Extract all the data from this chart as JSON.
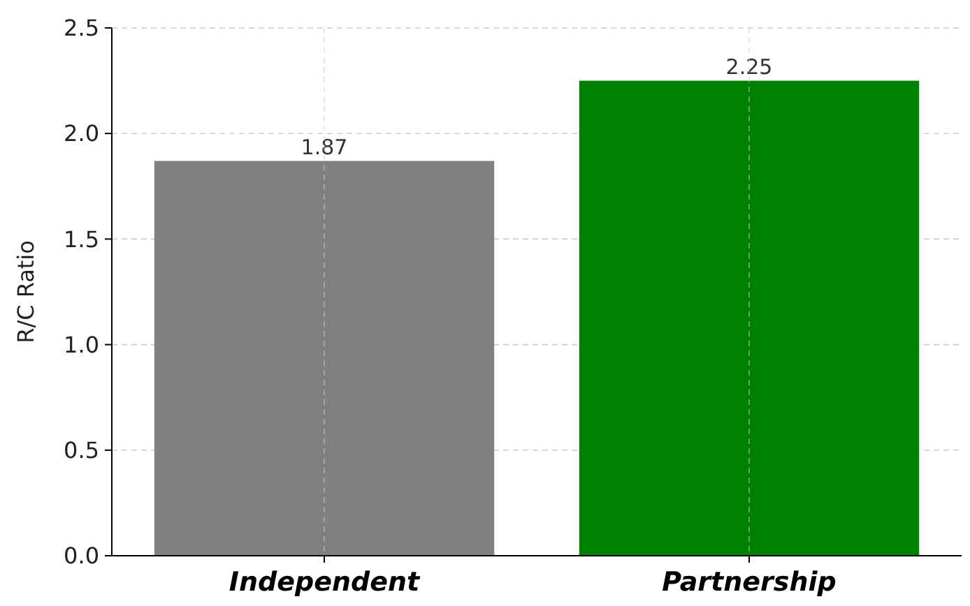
{
  "chart_data": {
    "type": "bar",
    "ylabel": "R/C Ratio",
    "categories": [
      "Independent",
      "Partnership"
    ],
    "values": [
      1.87,
      2.25
    ],
    "colors": [
      "#808080",
      "#008000"
    ],
    "ylim": [
      0,
      2.5
    ],
    "yticks": [
      {
        "value": 0,
        "label": "0.0"
      },
      {
        "value": 0.5,
        "label": "0.5"
      },
      {
        "value": 1,
        "label": "1.0"
      },
      {
        "value": 1.5,
        "label": "1.5"
      },
      {
        "value": 2,
        "label": "2.0"
      },
      {
        "value": 2.5,
        "label": "2.5"
      }
    ],
    "grid": true,
    "data_labels": true
  }
}
